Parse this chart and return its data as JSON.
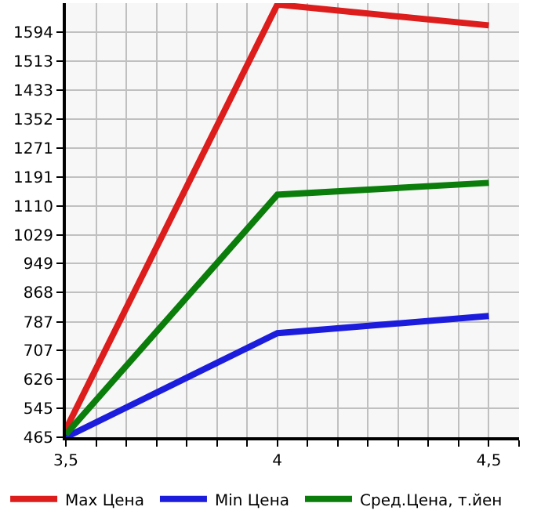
{
  "chart_data": {
    "type": "line",
    "x": [
      3.5,
      4,
      4.5
    ],
    "series": [
      {
        "name": "Max Цена",
        "color": "#dd1c1c",
        "values": [
          487,
          1671,
          1613
        ]
      },
      {
        "name": "Min Цена",
        "color": "#1c1cdd",
        "values": [
          465,
          755,
          803
        ]
      },
      {
        "name": "Сред.Цена, т.йен",
        "color": "#0a7d0a",
        "values": [
          473,
          1141,
          1174
        ]
      }
    ],
    "xlim": [
      3.5,
      4.5714
    ],
    "xticks": [
      {
        "value": 3.5,
        "label": "3,5"
      },
      {
        "value": 3.5714,
        "label": null
      },
      {
        "value": 3.6429,
        "label": null
      },
      {
        "value": 3.7143,
        "label": null
      },
      {
        "value": 3.7857,
        "label": null
      },
      {
        "value": 3.8571,
        "label": null
      },
      {
        "value": 3.9286,
        "label": null
      },
      {
        "value": 4,
        "label": "4"
      },
      {
        "value": 4.0714,
        "label": null
      },
      {
        "value": 4.1429,
        "label": null
      },
      {
        "value": 4.2143,
        "label": null
      },
      {
        "value": 4.2857,
        "label": null
      },
      {
        "value": 4.3571,
        "label": null
      },
      {
        "value": 4.4286,
        "label": null
      },
      {
        "value": 4.5,
        "label": "4,5"
      },
      {
        "value": 4.5714,
        "label": null
      }
    ],
    "ylim": [
      465,
      1675
    ],
    "yticks": [
      465,
      545,
      626,
      707,
      787,
      868,
      949,
      1029,
      1110,
      1191,
      1271,
      1352,
      1433,
      1513,
      1594
    ],
    "grid": true,
    "legend": "bottom",
    "marker": "none",
    "line_style": "solid"
  }
}
